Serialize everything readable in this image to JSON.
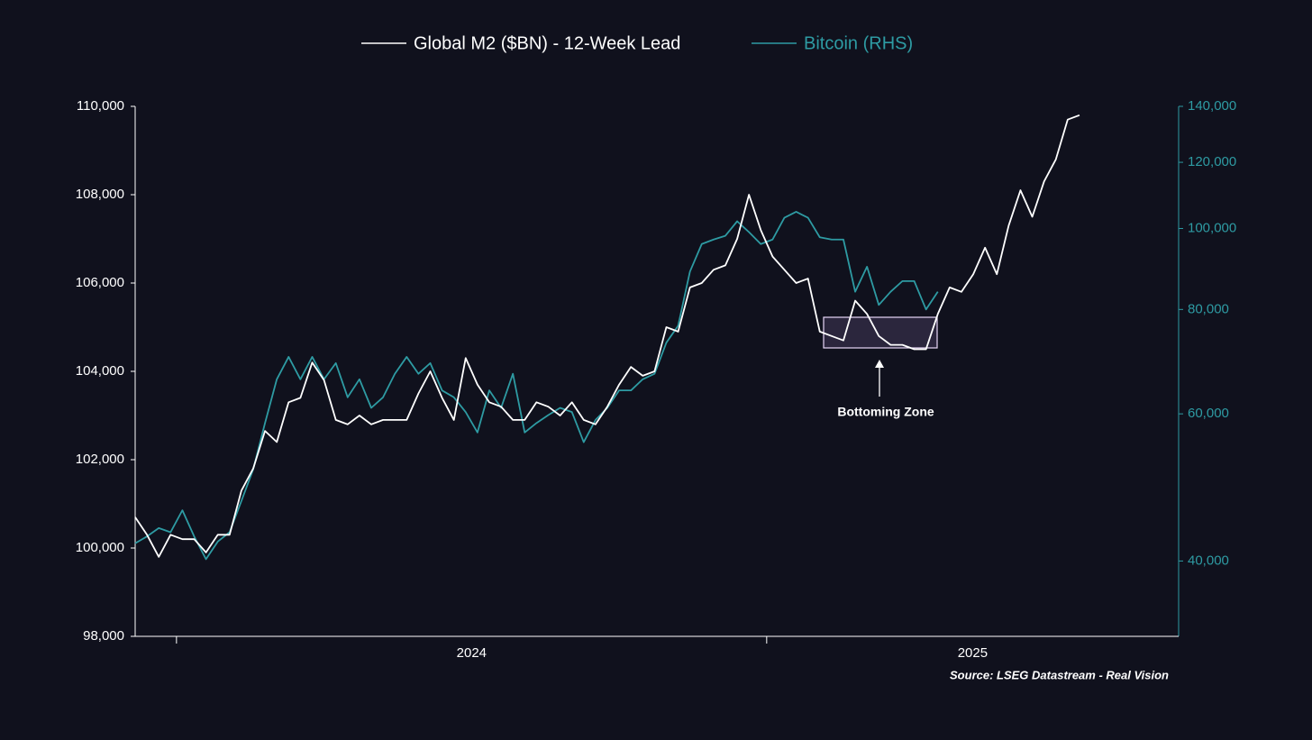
{
  "chart_data": {
    "type": "line",
    "legend": "top",
    "annotation": "Bottoming Zone",
    "source": "Source: LSEG Datastream - Real Vision",
    "xlim": [
      2023.93,
      2025.698
    ],
    "xticks": [
      {
        "value": 2024,
        "label": "2024"
      },
      {
        "value": 2025,
        "label": "2025"
      }
    ],
    "ylim": [
      98000,
      110000
    ],
    "yticks": [
      {
        "value": 98000,
        "label": "98,000"
      },
      {
        "value": 100000,
        "label": "100,000"
      },
      {
        "value": 102000,
        "label": "102,000"
      },
      {
        "value": 104000,
        "label": "104,000"
      },
      {
        "value": 106000,
        "label": "106,000"
      },
      {
        "value": 108000,
        "label": "108,000"
      },
      {
        "value": 110000,
        "label": "110,000"
      }
    ],
    "y2lim": [
      32500,
      140000
    ],
    "y2scale": "log",
    "y2ticks": [
      {
        "value": 40000,
        "label": "40,000"
      },
      {
        "value": 60000,
        "label": "60,000"
      },
      {
        "value": 80000,
        "label": "80,000"
      },
      {
        "value": 100000,
        "label": "100,000"
      },
      {
        "value": 120000,
        "label": "120,000"
      },
      {
        "value": 140000,
        "label": "140,000"
      }
    ],
    "grid": false,
    "series": [
      {
        "name": "Global M2 ($BN) - 12-Week Lead",
        "color": "#ffffff",
        "axis": "y",
        "x": [
          2023.93,
          2023.95,
          2023.97,
          2023.99,
          2024.01,
          2024.03,
          2024.05,
          2024.07,
          2024.09,
          2024.11,
          2024.13,
          2024.15,
          2024.17,
          2024.19,
          2024.21,
          2024.23,
          2024.25,
          2024.27,
          2024.29,
          2024.31,
          2024.33,
          2024.35,
          2024.37,
          2024.39,
          2024.41,
          2024.43,
          2024.45,
          2024.47,
          2024.49,
          2024.51,
          2024.53,
          2024.55,
          2024.57,
          2024.59,
          2024.61,
          2024.63,
          2024.65,
          2024.67,
          2024.69,
          2024.71,
          2024.73,
          2024.75,
          2024.77,
          2024.79,
          2024.81,
          2024.83,
          2024.85,
          2024.87,
          2024.89,
          2024.91,
          2024.93,
          2024.95,
          2024.97,
          2024.99,
          2025.01,
          2025.03,
          2025.05,
          2025.07,
          2025.09,
          2025.11,
          2025.13,
          2025.15,
          2025.17,
          2025.19,
          2025.21,
          2025.23,
          2025.25,
          2025.27,
          2025.29,
          2025.31,
          2025.33,
          2025.35,
          2025.37,
          2025.39,
          2025.41,
          2025.43,
          2025.45,
          2025.47,
          2025.49,
          2025.51,
          2025.53
        ],
        "values": [
          100700,
          100300,
          99800,
          100300,
          100200,
          100200,
          99900,
          100300,
          100300,
          101300,
          101800,
          102650,
          102400,
          103300,
          103400,
          104200,
          103800,
          102900,
          102800,
          103000,
          102800,
          102900,
          102900,
          102900,
          103500,
          104000,
          103400,
          102900,
          104300,
          103700,
          103300,
          103200,
          102900,
          102900,
          103300,
          103200,
          103000,
          103300,
          102900,
          102800,
          103200,
          103700,
          104100,
          103900,
          104000,
          105000,
          104900,
          105900,
          106000,
          106300,
          106400,
          107000,
          108000,
          107200,
          106600,
          106300,
          106000,
          106100,
          104900,
          104800,
          104700,
          105600,
          105300,
          104800,
          104600,
          104600,
          104500,
          104500,
          105300,
          105900,
          105800,
          106200,
          106800,
          106200,
          107300,
          108100,
          107500,
          108300,
          108800,
          109700,
          109800
        ]
      },
      {
        "name": "Bitcoin (RHS)",
        "color": "#2e9ba3",
        "axis": "y2",
        "x": [
          2023.93,
          2023.95,
          2023.97,
          2023.99,
          2024.01,
          2024.03,
          2024.05,
          2024.07,
          2024.09,
          2024.11,
          2024.13,
          2024.15,
          2024.17,
          2024.19,
          2024.21,
          2024.23,
          2024.25,
          2024.27,
          2024.29,
          2024.31,
          2024.33,
          2024.35,
          2024.37,
          2024.39,
          2024.41,
          2024.43,
          2024.45,
          2024.47,
          2024.49,
          2024.51,
          2024.53,
          2024.55,
          2024.57,
          2024.59,
          2024.61,
          2024.63,
          2024.65,
          2024.67,
          2024.69,
          2024.71,
          2024.73,
          2024.75,
          2024.77,
          2024.79,
          2024.81,
          2024.83,
          2024.85,
          2024.87,
          2024.89,
          2024.91,
          2024.93,
          2024.95,
          2024.97,
          2024.99,
          2025.01,
          2025.03,
          2025.05,
          2025.07,
          2025.09,
          2025.11,
          2025.13,
          2025.15,
          2025.17,
          2025.19,
          2025.21,
          2025.23,
          2025.25,
          2025.27,
          2025.29
        ],
        "values": [
          42000,
          42800,
          43800,
          43300,
          46000,
          42800,
          40200,
          42200,
          43300,
          47200,
          51500,
          58500,
          66000,
          70200,
          66000,
          70200,
          66000,
          69000,
          62800,
          66000,
          61000,
          62800,
          67000,
          70200,
          67000,
          69000,
          64000,
          62800,
          60300,
          57000,
          64000,
          61000,
          67000,
          57000,
          58500,
          59800,
          61000,
          60300,
          55500,
          59000,
          61000,
          64000,
          64000,
          66000,
          67000,
          73000,
          76500,
          88800,
          95800,
          97000,
          98000,
          102000,
          99000,
          95800,
          97000,
          103000,
          104700,
          103000,
          97600,
          97000,
          97000,
          84000,
          90000,
          81000,
          84000,
          86500,
          86500,
          80000,
          84000
        ]
      }
    ]
  }
}
